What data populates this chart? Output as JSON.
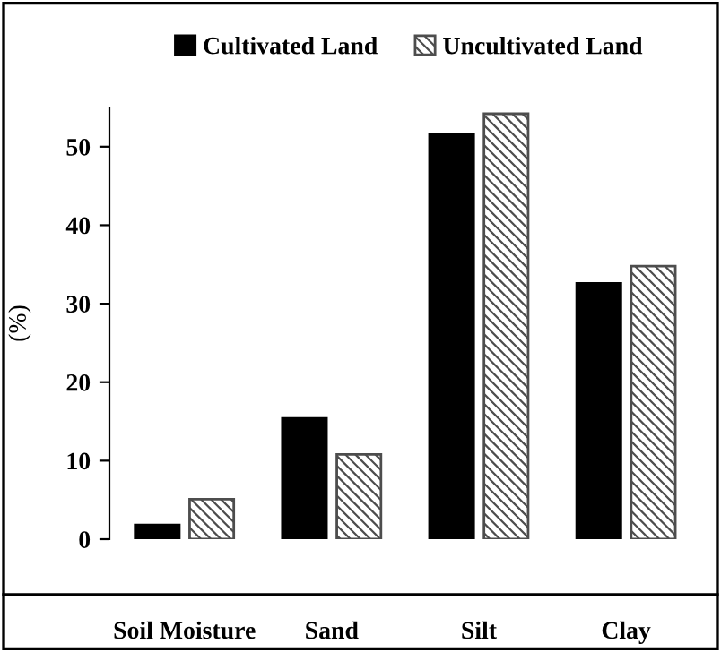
{
  "chart_data": {
    "type": "bar",
    "ylabel": "(%)",
    "categories": [
      "Soil Moisture",
      "Sand",
      "Silt",
      "Clay"
    ],
    "series": [
      {
        "name": "Cultivated Land",
        "color": "#000000",
        "values": [
          1.8,
          15.4,
          51.6,
          32.6
        ]
      },
      {
        "name": "Uncultivated Land",
        "color": "#4d4d4d",
        "values": [
          5.1,
          10.8,
          54.2,
          34.8
        ]
      }
    ],
    "ylim": [
      0,
      55
    ],
    "yticks": [
      0,
      10,
      20,
      30,
      40,
      50
    ],
    "grid": false,
    "legend": "top"
  }
}
